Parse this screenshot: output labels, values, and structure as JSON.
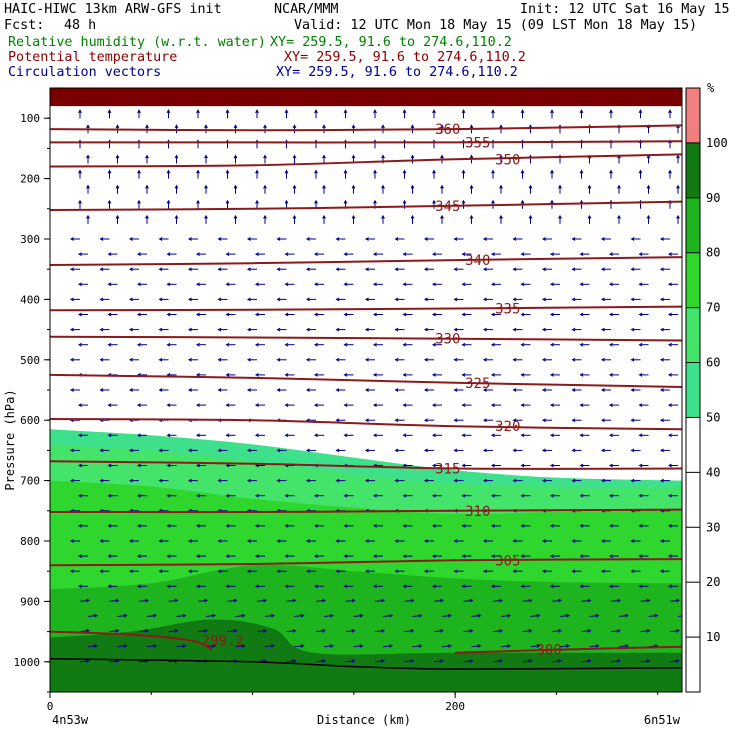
{
  "header": {
    "model": "HAIC-HIWC 13km ARW-GFS init",
    "org": "NCAR/MMM",
    "init": "Init: 12 UTC Sat 16 May 15",
    "fcst_label": "Fcst:",
    "fcst_value": "48 h",
    "valid": "Valid: 12 UTC Mon 18 May 15 (09 LST Mon 18 May 15)"
  },
  "fields": [
    {
      "name": "Relative humidity (w.r.t. water)",
      "xy": "XY= 259.5, 91.6 to 274.6,110.2",
      "color": "#008000"
    },
    {
      "name": "Potential temperature",
      "xy": "XY= 259.5, 91.6 to 274.6,110.2",
      "color": "#8b0000"
    },
    {
      "name": "Circulation vectors",
      "xy": "XY= 259.5, 91.6 to 274.6,110.2",
      "color": "#00008b"
    }
  ],
  "colorbar": {
    "unit": "%",
    "ticks": [
      "10",
      "20",
      "30",
      "40",
      "50",
      "60",
      "70",
      "80",
      "90",
      "100"
    ],
    "levels": [
      {
        "from": 0,
        "to": 50,
        "color": "#ffffff"
      },
      {
        "from": 50,
        "to": 60,
        "color": "#3fe08c"
      },
      {
        "from": 60,
        "to": 70,
        "color": "#44e36a"
      },
      {
        "from": 70,
        "to": 80,
        "color": "#2ed62e"
      },
      {
        "from": 80,
        "to": 90,
        "color": "#1eb41e"
      },
      {
        "from": 90,
        "to": 100,
        "color": "#127a12"
      },
      {
        "from": 100,
        "to": 110,
        "color": "#f08080"
      }
    ]
  },
  "axes": {
    "ylabel": "Pressure (hPa)",
    "xlabel": "Distance (km)",
    "left_endpoint": "4n53w",
    "right_endpoint": "6n51w"
  },
  "chart_data": {
    "type": "cross-section",
    "x_range_km": [
      0,
      312
    ],
    "y_range_hpa": [
      1050,
      50
    ],
    "x_ticks": [
      0,
      200
    ],
    "y_ticks": [
      100,
      200,
      300,
      400,
      500,
      600,
      700,
      800,
      900,
      1000
    ],
    "rh_top_fill": {
      "value": 100,
      "pressure_bottom_hpa": 80,
      "color": "#7a0000"
    },
    "rh_regions": [
      {
        "level": 50,
        "color": "#3fe08c",
        "top": [
          [
            0,
            615
          ],
          [
            50,
            625
          ],
          [
            100,
            640
          ],
          [
            150,
            662
          ],
          [
            200,
            683
          ],
          [
            250,
            695
          ],
          [
            312,
            700
          ]
        ]
      },
      {
        "level": 60,
        "color": "#44e36a",
        "top": [
          [
            0,
            640
          ],
          [
            50,
            650
          ],
          [
            100,
            668
          ],
          [
            150,
            690
          ],
          [
            200,
            705
          ],
          [
            250,
            710
          ],
          [
            312,
            712
          ]
        ]
      },
      {
        "level": 70,
        "color": "#2ed62e",
        "top": [
          [
            0,
            700
          ],
          [
            50,
            710
          ],
          [
            100,
            730
          ],
          [
            150,
            745
          ],
          [
            200,
            755
          ],
          [
            250,
            752
          ],
          [
            312,
            750
          ]
        ]
      },
      {
        "level": 80,
        "color": "#1eb41e",
        "top": [
          [
            0,
            880
          ],
          [
            50,
            870
          ],
          [
            100,
            840
          ],
          [
            150,
            850
          ],
          [
            200,
            862
          ],
          [
            250,
            868
          ],
          [
            312,
            870
          ]
        ]
      },
      {
        "level": 90,
        "color": "#127a12",
        "top": [
          [
            0,
            960
          ],
          [
            40,
            950
          ],
          [
            80,
            930
          ],
          [
            110,
            945
          ],
          [
            130,
            985
          ],
          [
            200,
            985
          ],
          [
            312,
            985
          ]
        ]
      }
    ],
    "theta_contours": [
      {
        "value": 360,
        "label": "360",
        "points": [
          [
            0,
            118
          ],
          [
            100,
            120
          ],
          [
            200,
            118
          ],
          [
            312,
            112
          ]
        ]
      },
      {
        "value": 355,
        "label": "355",
        "points": [
          [
            0,
            140
          ],
          [
            100,
            140
          ],
          [
            200,
            140
          ],
          [
            312,
            138
          ]
        ]
      },
      {
        "value": 350,
        "label": "350",
        "points": [
          [
            0,
            180
          ],
          [
            100,
            178
          ],
          [
            200,
            168
          ],
          [
            312,
            160
          ]
        ]
      },
      {
        "value": 345,
        "label": "345",
        "points": [
          [
            0,
            252
          ],
          [
            100,
            250
          ],
          [
            200,
            245
          ],
          [
            312,
            238
          ]
        ]
      },
      {
        "value": 340,
        "label": "340",
        "points": [
          [
            0,
            343
          ],
          [
            100,
            340
          ],
          [
            200,
            335
          ],
          [
            312,
            330
          ]
        ]
      },
      {
        "value": 335,
        "label": "335",
        "points": [
          [
            0,
            418
          ],
          [
            100,
            417
          ],
          [
            200,
            415
          ],
          [
            312,
            412
          ]
        ]
      },
      {
        "value": 330,
        "label": "330",
        "points": [
          [
            0,
            462
          ],
          [
            100,
            463
          ],
          [
            200,
            465
          ],
          [
            312,
            468
          ]
        ]
      },
      {
        "value": 325,
        "label": "325",
        "points": [
          [
            0,
            525
          ],
          [
            100,
            530
          ],
          [
            200,
            538
          ],
          [
            312,
            545
          ]
        ]
      },
      {
        "value": 320,
        "label": "320",
        "points": [
          [
            0,
            598
          ],
          [
            100,
            600
          ],
          [
            200,
            610
          ],
          [
            312,
            615
          ]
        ]
      },
      {
        "value": 315,
        "label": "315",
        "points": [
          [
            0,
            668
          ],
          [
            100,
            672
          ],
          [
            200,
            680
          ],
          [
            312,
            680
          ]
        ]
      },
      {
        "value": 310,
        "label": "310",
        "points": [
          [
            0,
            752
          ],
          [
            100,
            752
          ],
          [
            200,
            750
          ],
          [
            312,
            748
          ]
        ]
      },
      {
        "value": 305,
        "label": "305",
        "points": [
          [
            0,
            840
          ],
          [
            100,
            838
          ],
          [
            200,
            832
          ],
          [
            312,
            830
          ]
        ]
      },
      {
        "value": 300,
        "label": "300",
        "points": [
          [
            200,
            985
          ],
          [
            250,
            980
          ],
          [
            312,
            975
          ]
        ]
      },
      {
        "value": 299.2,
        "label": "299.2",
        "points": [
          [
            0,
            950
          ],
          [
            40,
            955
          ],
          [
            70,
            965
          ],
          [
            80,
            980
          ]
        ]
      }
    ],
    "terrain_pressure_hpa": [
      [
        0,
        995
      ],
      [
        100,
        1000
      ],
      [
        150,
        1008
      ],
      [
        200,
        1012
      ],
      [
        312,
        1010
      ]
    ]
  }
}
